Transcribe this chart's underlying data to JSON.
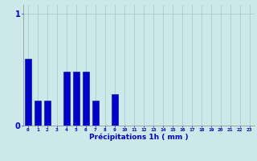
{
  "values": [
    0.6,
    0.22,
    0.22,
    0.0,
    0.48,
    0.48,
    0.48,
    0.22,
    0.0,
    0.28,
    0.0,
    0.0,
    0.0,
    0.0,
    0.0,
    0.0,
    0.0,
    0.0,
    0.0,
    0.0,
    0.0,
    0.0,
    0.0,
    0.0
  ],
  "bar_color": "#0000cc",
  "bar_edge_color": "#0000aa",
  "background_color": "#cce8e8",
  "grid_color": "#aacccc",
  "xlabel": "Précipitations 1h ( mm )",
  "xlabel_color": "#0000cc",
  "tick_color": "#0000cc",
  "ytick_labels": [
    "0",
    "1"
  ],
  "ytick_values": [
    0,
    1
  ],
  "ylim": [
    0,
    1.08
  ],
  "xlim": [
    -0.5,
    23.5
  ],
  "figsize": [
    3.2,
    2.0
  ],
  "dpi": 100
}
